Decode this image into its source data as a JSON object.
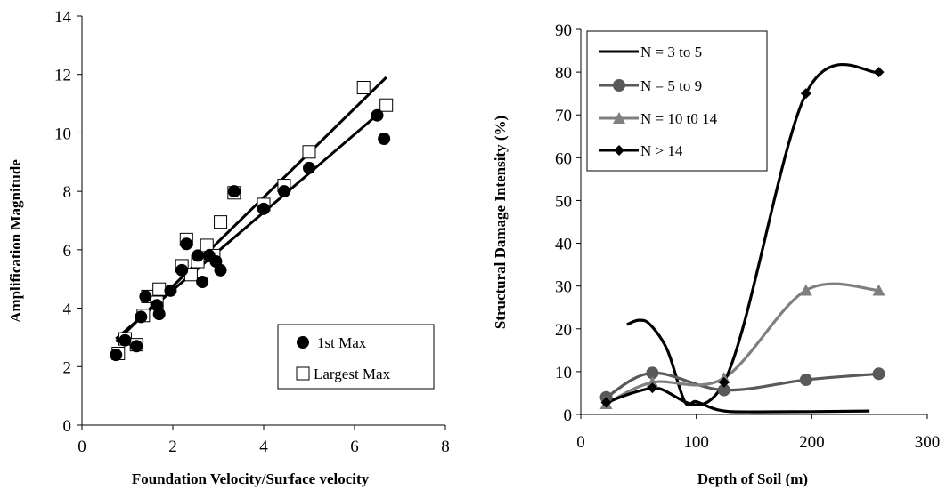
{
  "chart_data": [
    {
      "type": "scatter",
      "title": "",
      "xlabel": "Foundation Velocity/Surface velocity",
      "ylabel": "Amplification Magnitude",
      "xlim": [
        0,
        8
      ],
      "ylim": [
        0,
        14
      ],
      "x_ticks": [
        0,
        2,
        4,
        6,
        8
      ],
      "y_ticks": [
        0,
        2,
        4,
        6,
        8,
        10,
        12,
        14
      ],
      "grid": false,
      "legend_position": "bottom-right",
      "series": [
        {
          "name": "1st Max",
          "marker": "filled-circle",
          "color": "#000000",
          "points": [
            [
              0.75,
              2.4
            ],
            [
              0.95,
              2.9
            ],
            [
              1.2,
              2.7
            ],
            [
              1.3,
              3.7
            ],
            [
              1.4,
              4.4
            ],
            [
              1.7,
              3.8
            ],
            [
              1.65,
              4.1
            ],
            [
              1.95,
              4.6
            ],
            [
              2.2,
              5.3
            ],
            [
              2.3,
              6.2
            ],
            [
              2.55,
              5.8
            ],
            [
              2.65,
              4.9
            ],
            [
              2.8,
              5.8
            ],
            [
              2.95,
              5.6
            ],
            [
              3.05,
              5.3
            ],
            [
              3.35,
              8.0
            ],
            [
              4.0,
              7.4
            ],
            [
              4.45,
              8.0
            ],
            [
              5.0,
              8.8
            ],
            [
              6.5,
              10.6
            ],
            [
              6.65,
              9.8
            ]
          ],
          "fit": [
            [
              0.75,
              2.95
            ],
            [
              6.6,
              10.75
            ]
          ]
        },
        {
          "name": "Largest Max",
          "marker": "open-square",
          "color": "#000000",
          "points": [
            [
              0.8,
              2.45
            ],
            [
              0.95,
              2.95
            ],
            [
              1.2,
              2.75
            ],
            [
              1.35,
              3.75
            ],
            [
              1.45,
              4.4
            ],
            [
              1.7,
              4.65
            ],
            [
              1.65,
              4.2
            ],
            [
              2.2,
              5.45
            ],
            [
              2.3,
              6.35
            ],
            [
              2.4,
              5.15
            ],
            [
              2.55,
              5.6
            ],
            [
              2.75,
              6.15
            ],
            [
              2.9,
              5.8
            ],
            [
              3.05,
              6.95
            ],
            [
              3.35,
              7.95
            ],
            [
              4.0,
              7.55
            ],
            [
              4.45,
              8.2
            ],
            [
              5.0,
              9.35
            ],
            [
              6.2,
              11.55
            ],
            [
              6.7,
              10.95
            ]
          ],
          "fit": [
            [
              0.75,
              2.85
            ],
            [
              6.7,
              11.9
            ]
          ]
        }
      ]
    },
    {
      "type": "line",
      "title": "",
      "xlabel": "Depth of Soil (m)",
      "ylabel": "Structural Damage Intensity (%)",
      "xlim": [
        0,
        300
      ],
      "ylim": [
        0,
        90
      ],
      "x_ticks": [
        0,
        100,
        200,
        300
      ],
      "y_ticks": [
        0,
        10,
        20,
        30,
        40,
        50,
        60,
        70,
        80,
        90
      ],
      "grid": false,
      "legend_position": "top-left",
      "series": [
        {
          "name": "N = 3 to 5",
          "marker": "none",
          "color": "#000000",
          "points": [
            [
              40,
              21
            ],
            [
              50,
              22
            ],
            [
              60,
              21
            ],
            [
              75,
              15
            ],
            [
              90,
              3
            ],
            [
              100,
              3
            ],
            [
              120,
              1
            ],
            [
              150,
              0.6
            ],
            [
              250,
              0.8
            ]
          ]
        },
        {
          "name": "N = 5 to 9",
          "marker": "circle",
          "color": "#595959",
          "points": [
            [
              22,
              4
            ],
            [
              62,
              9.7
            ],
            [
              124,
              5.7
            ],
            [
              195,
              8.1
            ],
            [
              258,
              9.5
            ]
          ]
        },
        {
          "name": "N = 10 t0 14",
          "marker": "triangle",
          "color": "#7f7f7f",
          "points": [
            [
              22,
              2.5
            ],
            [
              62,
              7.5
            ],
            [
              124,
              8.5
            ],
            [
              195,
              29
            ],
            [
              258,
              29
            ]
          ]
        },
        {
          "name": "N > 14",
          "marker": "diamond",
          "color": "#000000",
          "points": [
            [
              22,
              2.8
            ],
            [
              62,
              6.2
            ],
            [
              124,
              7.5
            ],
            [
              195,
              75
            ],
            [
              258,
              80
            ]
          ]
        }
      ]
    }
  ]
}
